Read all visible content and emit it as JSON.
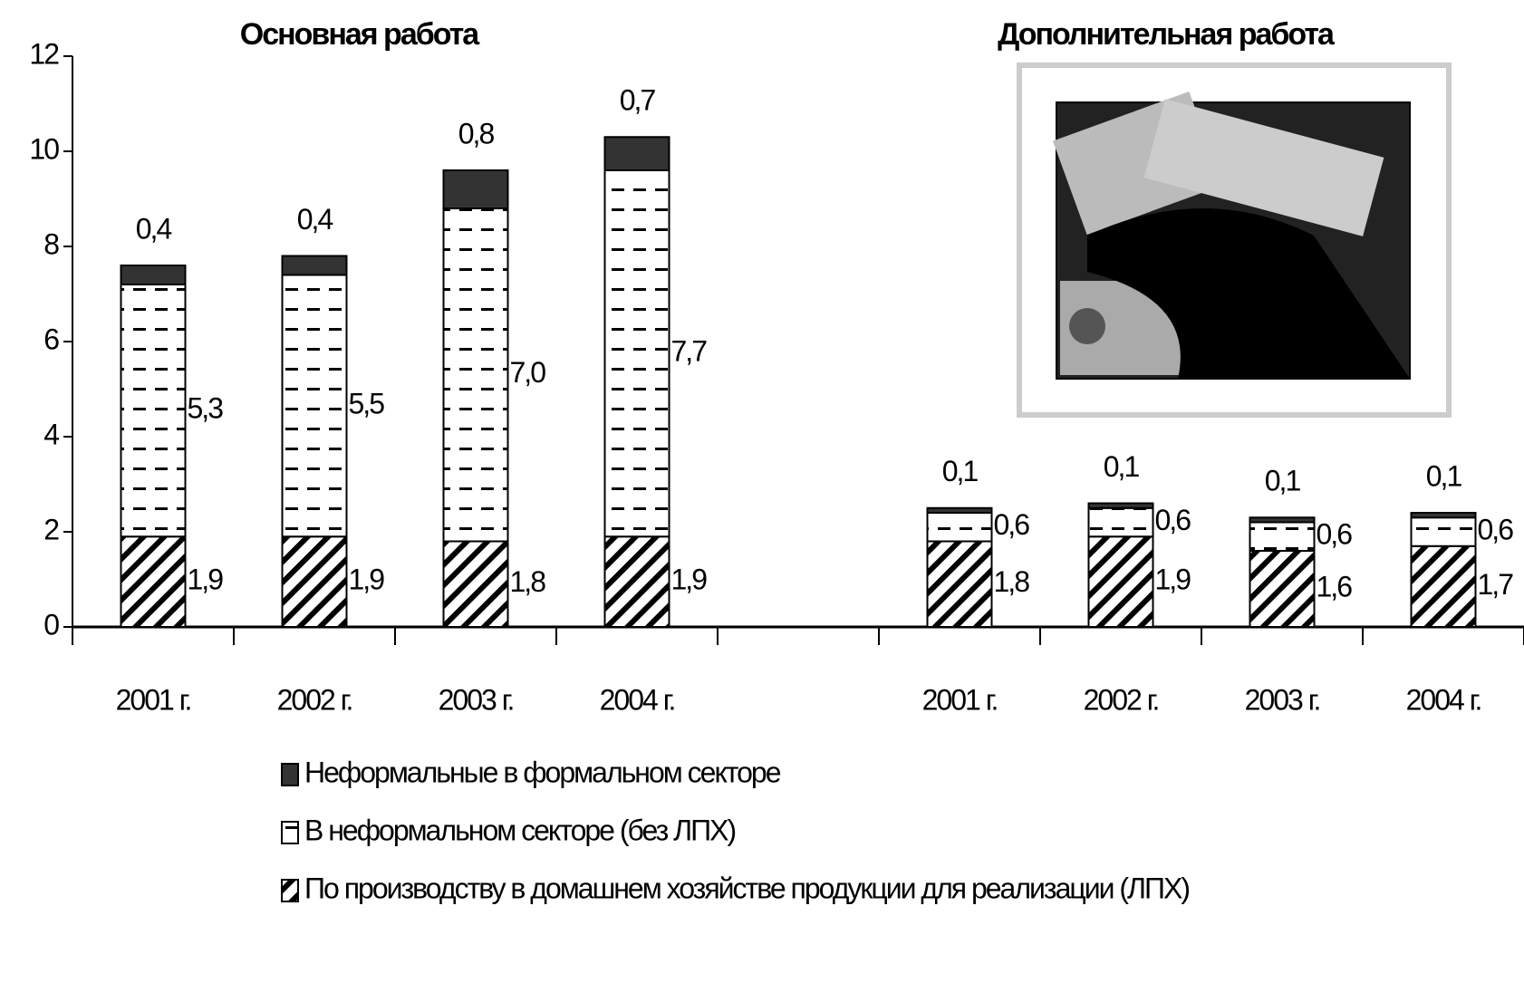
{
  "chart_data": {
    "type": "stacked_bar",
    "group_titles": [
      "Основная работа",
      "Дополнительная работа"
    ],
    "categories": [
      "2001 г.",
      "2002 г.",
      "2003 г.",
      "2004 г.",
      null,
      "2001 г.",
      "2002 г.",
      "2003 г.",
      "2004 г."
    ],
    "series": [
      {
        "name": "По производству в домашнем хозяйстве продукции для реализации (ЛПХ)",
        "color": "#000000",
        "values": [
          1.9,
          1.9,
          1.8,
          1.9,
          null,
          1.8,
          1.9,
          1.6,
          1.7
        ],
        "value_labels": [
          "1,9",
          "1,9",
          "1,8",
          "1,9",
          null,
          "1,8",
          "1,9",
          "1,6",
          "1,7"
        ]
      },
      {
        "name": "В неформальном секторе (без ЛПХ)",
        "color": "#ffffff",
        "values": [
          5.3,
          5.5,
          7.0,
          7.7,
          null,
          0.6,
          0.6,
          0.6,
          0.6
        ],
        "value_labels": [
          "5,3",
          "5,5",
          "7,0",
          "7,7",
          null,
          "0,6",
          "0,6",
          "0,6",
          "0,6"
        ]
      },
      {
        "name": "Неформальные в формальном секторе",
        "color": "#333333",
        "values": [
          0.4,
          0.4,
          0.8,
          0.7,
          null,
          0.1,
          0.1,
          0.1,
          0.1
        ],
        "value_labels": [
          "0,4",
          "0,4",
          "0,8",
          "0,7",
          null,
          "0,1",
          "0,1",
          "0,1",
          "0,1"
        ]
      }
    ],
    "ylim": [
      0,
      12
    ],
    "yticks": [
      0,
      2,
      4,
      6,
      8,
      10,
      12
    ],
    "grid": false
  }
}
